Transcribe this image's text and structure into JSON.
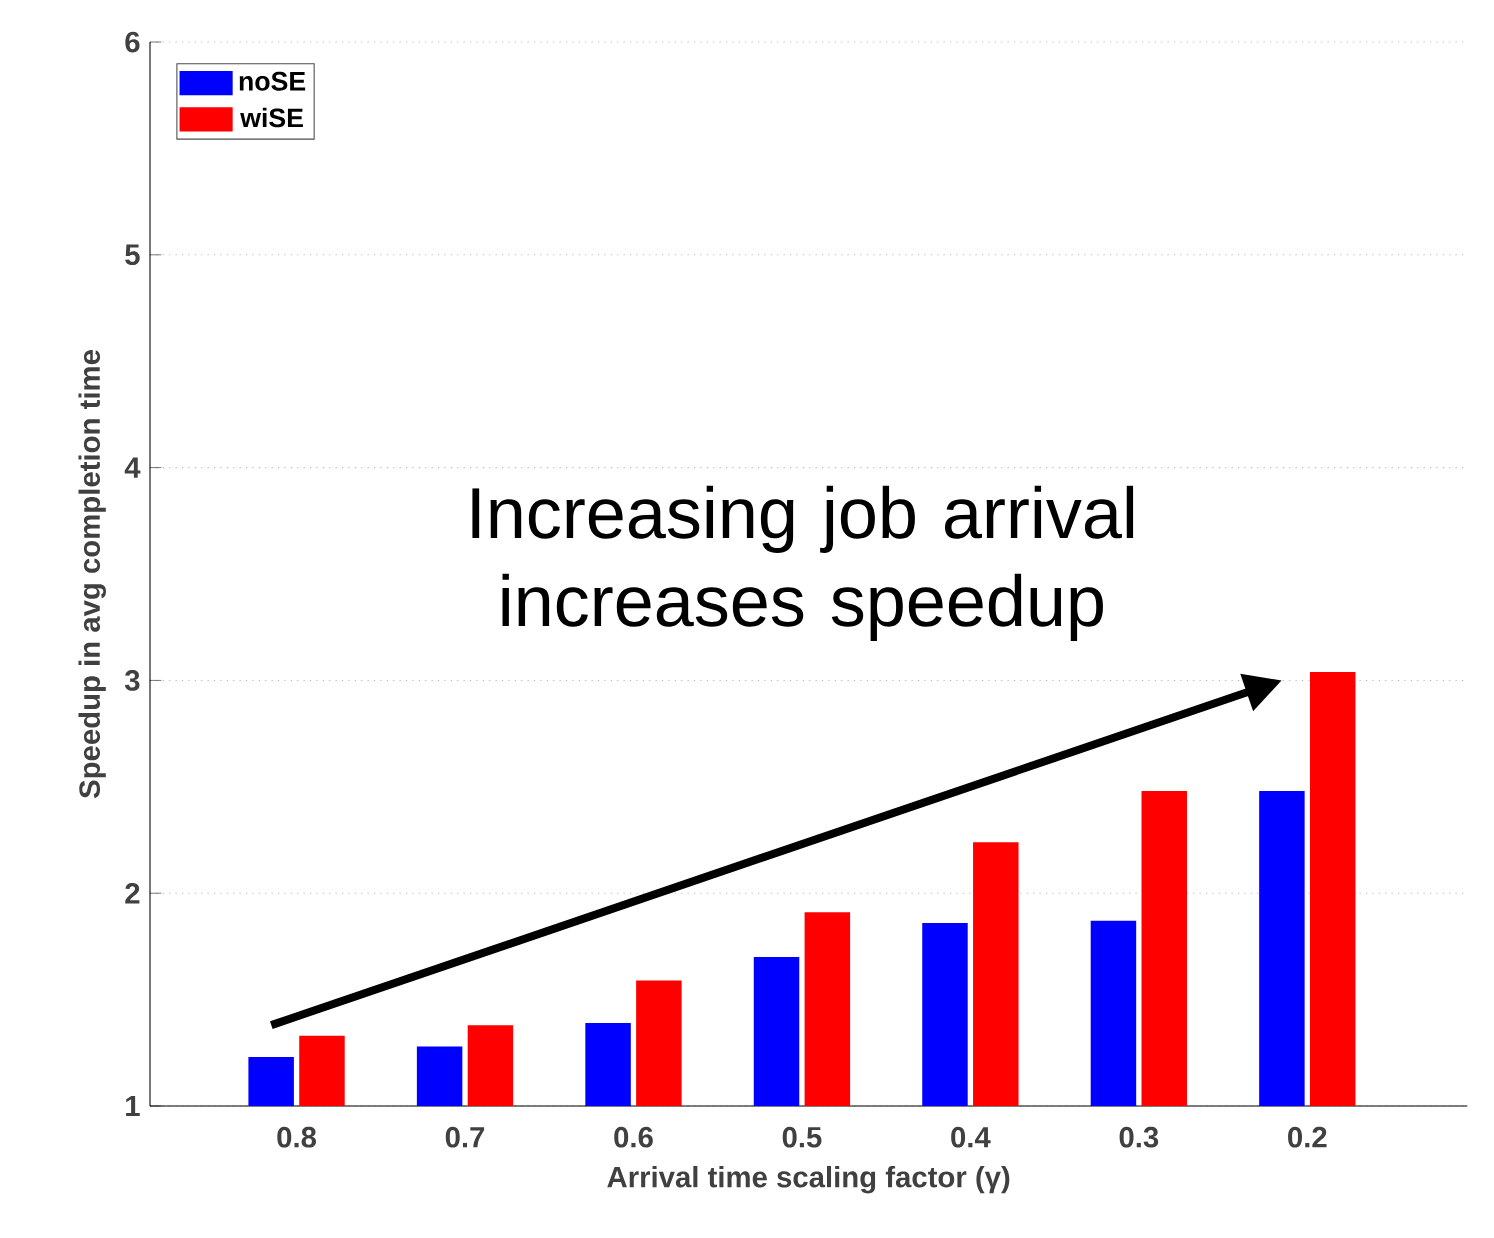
{
  "chart_data": {
    "type": "bar",
    "xlabel": "Arrival time scaling factor (γ)",
    "ylabel": "Speedup in avg completion time",
    "categories": [
      "0.8",
      "0.7",
      "0.6",
      "0.5",
      "0.4",
      "0.3",
      "0.2"
    ],
    "series": [
      {
        "name": "noSE",
        "color": "#0000ff",
        "values": [
          1.23,
          1.28,
          1.39,
          1.7,
          1.86,
          1.87,
          2.48
        ]
      },
      {
        "name": "wiSE",
        "color": "#ff0000",
        "values": [
          1.33,
          1.38,
          1.59,
          1.91,
          2.24,
          2.48,
          3.04
        ]
      }
    ],
    "ylim": [
      1,
      6
    ],
    "yticks": [
      1,
      2,
      3,
      4,
      5,
      6
    ],
    "grid": "y",
    "legend": "top left",
    "annotations": [
      "Increasing job arrival increases speedup"
    ]
  }
}
